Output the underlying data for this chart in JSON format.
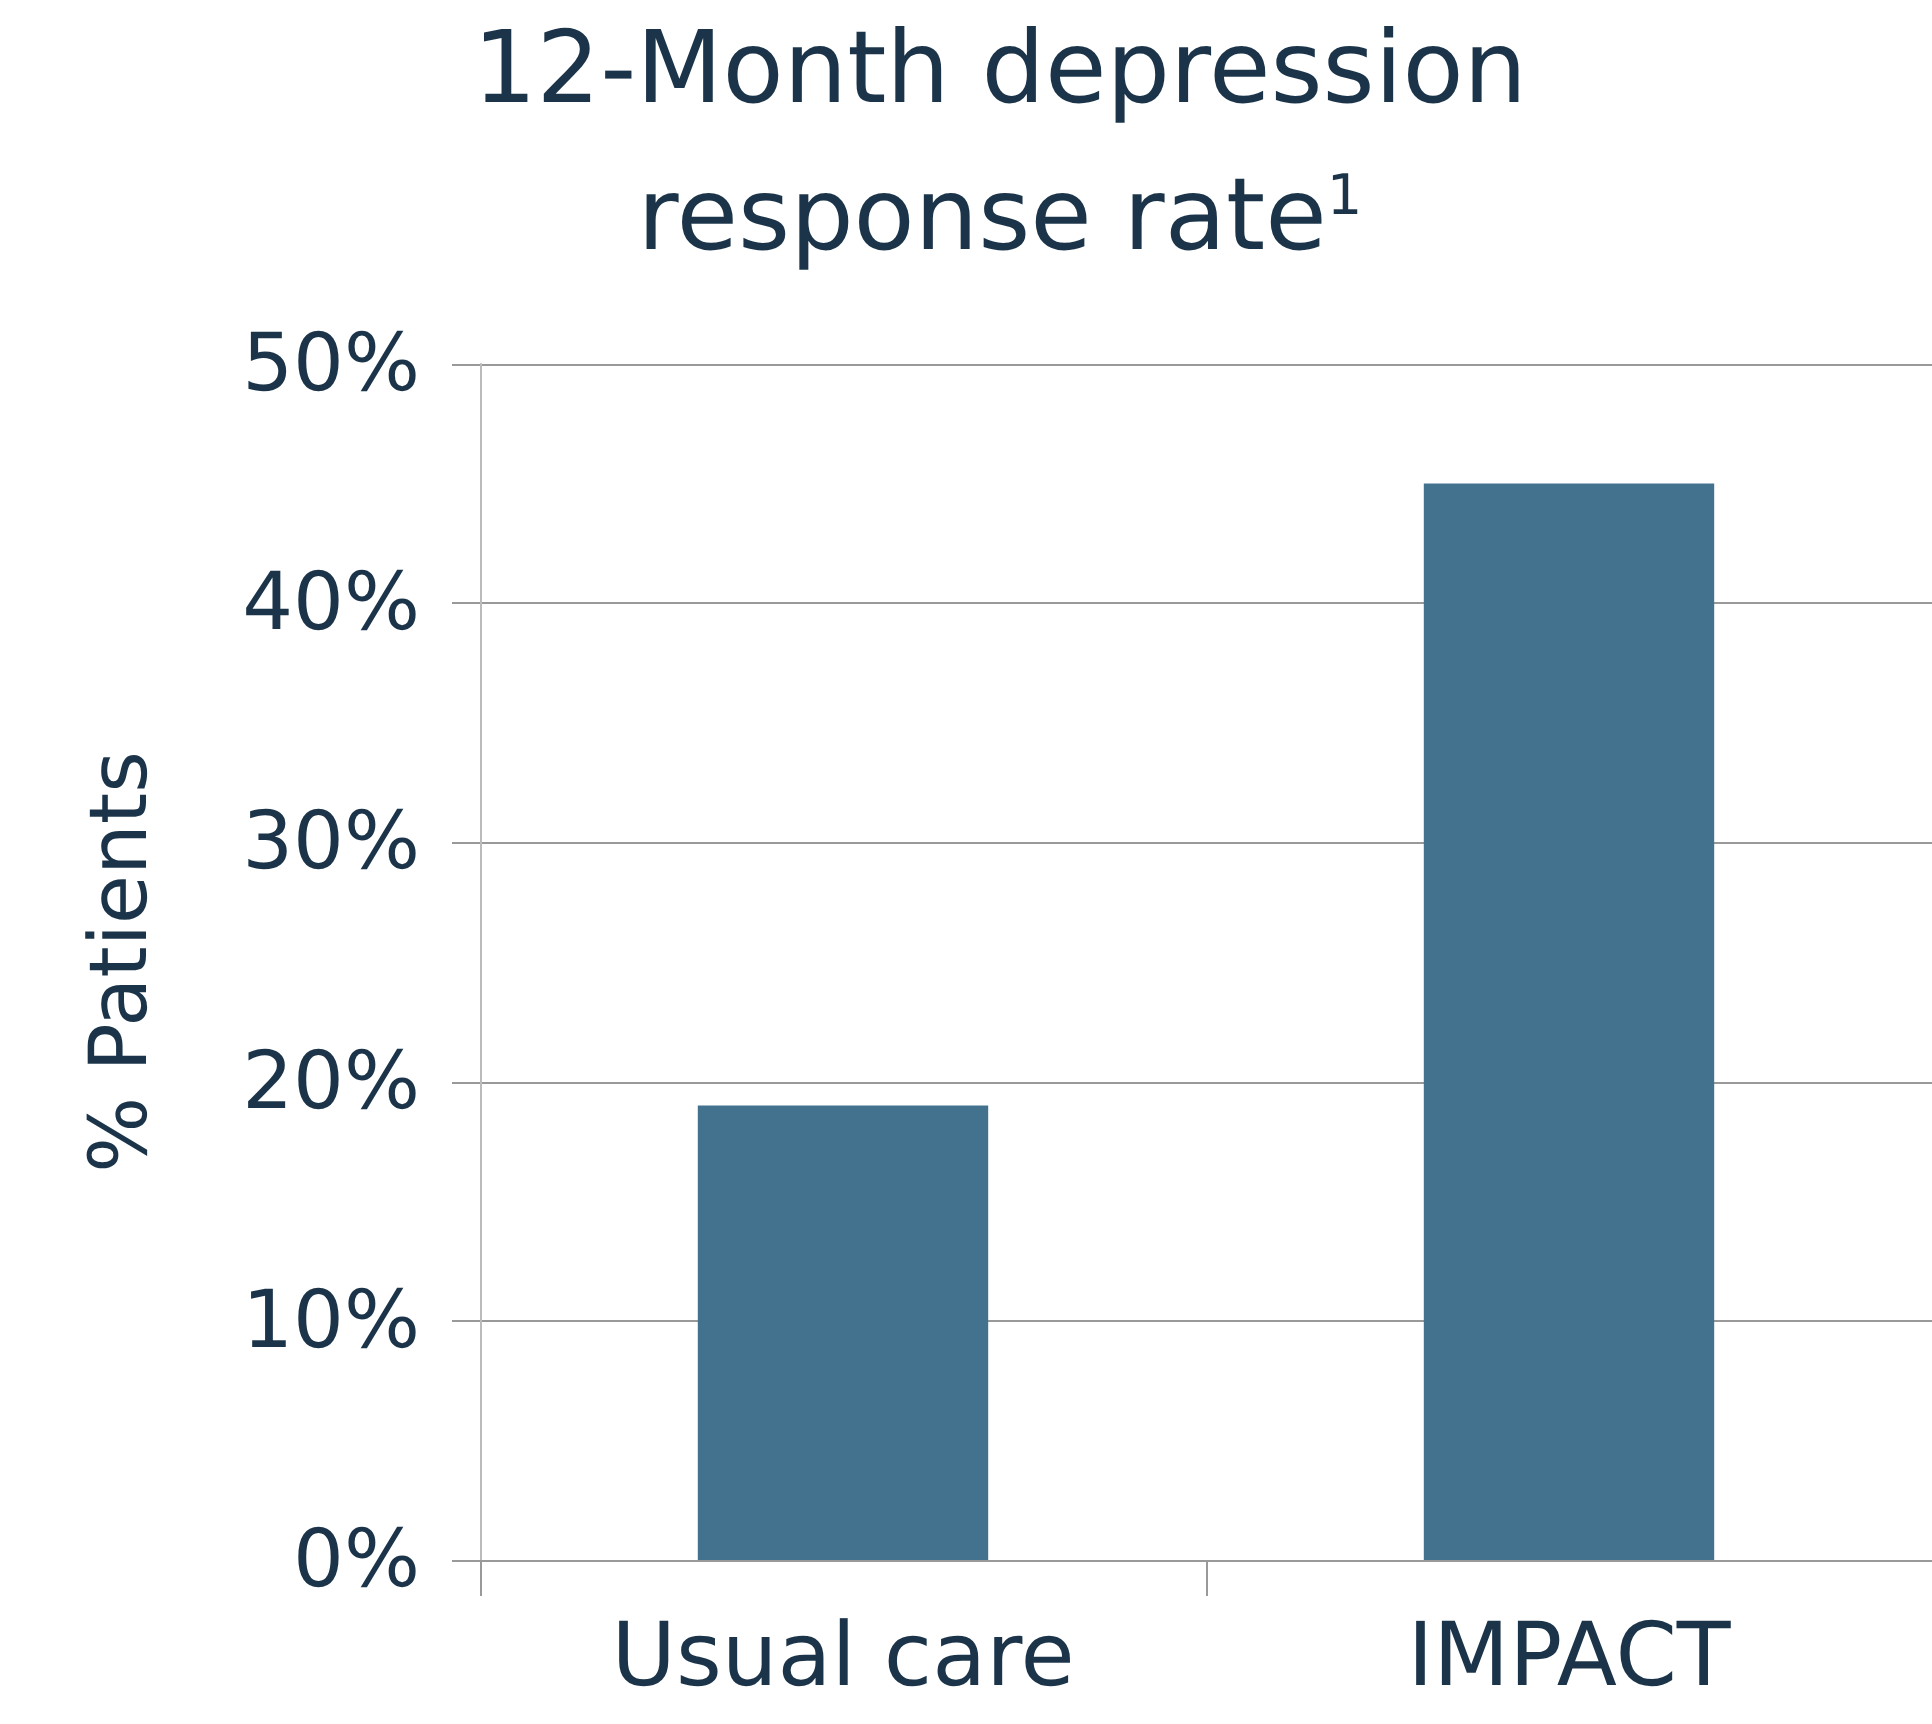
{
  "chart_data": {
    "type": "bar",
    "title": "12-Month depression response rate$^{1}$",
    "ylabel": "% Patients",
    "categories": [
      "Usual care",
      "IMPACT"
    ],
    "values": [
      19,
      45
    ],
    "color": "#43728f",
    "ylim": [
      0,
      50
    ],
    "yticks": [
      {
        "value": 0,
        "label": "0%"
      },
      {
        "value": 10,
        "label": "10%"
      },
      {
        "value": 20,
        "label": "20%"
      },
      {
        "value": 30,
        "label": "30%"
      },
      {
        "value": 40,
        "label": "40%"
      },
      {
        "value": 50,
        "label": "50%"
      }
    ],
    "grid": "y"
  }
}
